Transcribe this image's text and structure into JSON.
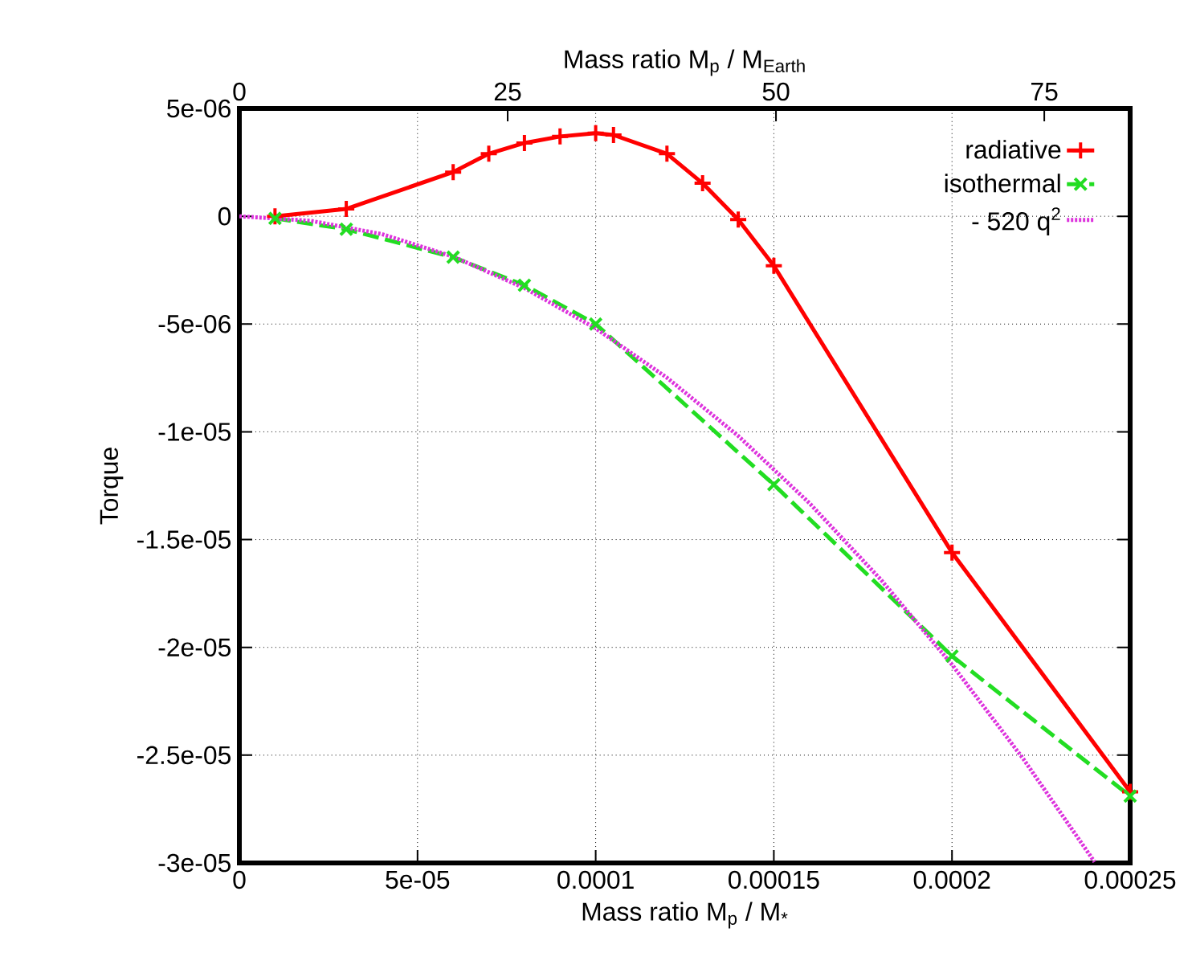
{
  "chart_data": {
    "type": "line",
    "xlabel": "Mass ratio M$_{p}$ / M$_{*}$",
    "x2label": "Mass ratio M$_{p}$ / M$_{Earth}$",
    "ylabel": "Torque",
    "xlim": [
      0,
      0.00025
    ],
    "xticks": [
      0,
      {
        "value": 5e-05,
        "label": "5e-05"
      },
      0.0001,
      0.00015,
      0.0002,
      0.00025
    ],
    "x2lim": [
      0,
      83
    ],
    "x2ticks": [
      0,
      25,
      50,
      75
    ],
    "ylim": [
      -3e-05,
      5e-06
    ],
    "yticks": [
      {
        "value": 5e-06,
        "label": "5e-06"
      },
      0,
      {
        "value": -5e-06,
        "label": "-5e-06"
      },
      {
        "value": -1e-05,
        "label": "-1e-05"
      },
      {
        "value": -1.5e-05,
        "label": "-1.5e-05"
      },
      {
        "value": -2e-05,
        "label": "-2e-05"
      },
      {
        "value": -2.5e-05,
        "label": "-2.5e-05"
      },
      {
        "value": -3e-05,
        "label": "-3e-05"
      }
    ],
    "grid": true,
    "legend": "top right",
    "series": [
      {
        "name": "radiative",
        "color": "#ff0000",
        "marker": "plus",
        "line_style": "solid",
        "x": [
          1e-05,
          3e-05,
          6e-05,
          7e-05,
          8e-05,
          9e-05,
          0.0001,
          0.000105,
          0.00012,
          0.00013,
          0.00014,
          0.00015,
          0.0002,
          0.00025
        ],
        "values": [
          0,
          3.4e-07,
          2.05e-06,
          2.9e-06,
          3.4e-06,
          3.7e-06,
          3.85e-06,
          3.77e-06,
          2.9e-06,
          1.53e-06,
          -1.5e-07,
          -2.3e-06,
          -1.56e-05,
          -2.67e-05
        ]
      },
      {
        "name": "isothermal",
        "color": "#22dd22",
        "marker": "cross",
        "line_style": "dashed",
        "x": [
          1e-05,
          3e-05,
          6e-05,
          8e-05,
          0.0001,
          0.00015,
          0.0002,
          0.00025
        ],
        "values": [
          -1e-07,
          -6e-07,
          -1.9e-06,
          -3.2e-06,
          -5e-06,
          -1.245e-05,
          -2.04e-05,
          -2.69e-05
        ]
      },
      {
        "name": "- 520 q$^{2}$",
        "color": "#dd33dd",
        "marker": "none",
        "line_style": "dotted",
        "x": [
          0,
          2e-05,
          4e-05,
          6e-05,
          8e-05,
          0.0001,
          0.00012,
          0.00014,
          0.00016,
          0.00018,
          0.0002,
          0.00022,
          0.00024
        ],
        "values": [
          0,
          -2.1e-07,
          -8.3e-07,
          -1.87e-06,
          -3.33e-06,
          -5.2e-06,
          -7.49e-06,
          -1.019e-05,
          -1.331e-05,
          -1.685e-05,
          -2.08e-05,
          -2.517e-05,
          -2.995e-05
        ]
      }
    ]
  }
}
